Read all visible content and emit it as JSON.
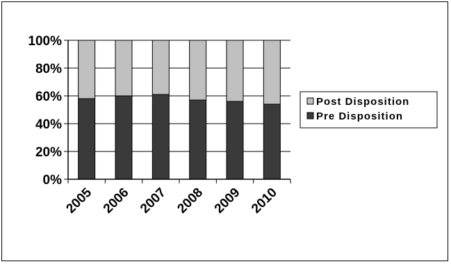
{
  "chart_data": {
    "type": "bar",
    "stacked": true,
    "percent_stacked": true,
    "categories": [
      "2005",
      "2006",
      "2007",
      "2008",
      "2009",
      "2010"
    ],
    "series": [
      {
        "name": "Pre Disposition",
        "values": [
          58,
          60,
          61,
          57,
          56,
          54
        ],
        "color": "#3a3a3a"
      },
      {
        "name": "Post Disposition",
        "values": [
          42,
          40,
          39,
          43,
          44,
          46
        ],
        "color": "#c0c0c0"
      }
    ],
    "y_ticks": [
      "0%",
      "20%",
      "40%",
      "60%",
      "80%",
      "100%"
    ],
    "ylim": [
      0,
      100
    ],
    "legend_position": "right",
    "legend_order": [
      "Post Disposition",
      "Pre Disposition"
    ],
    "grid": true
  }
}
